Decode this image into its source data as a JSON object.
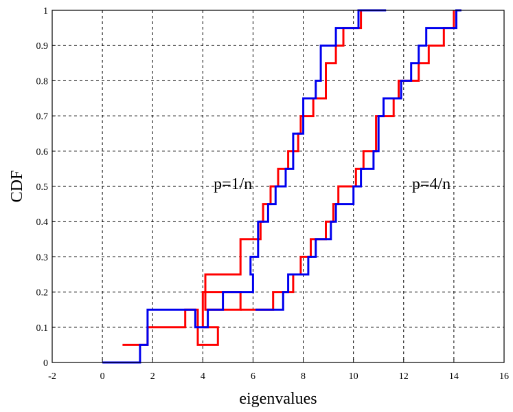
{
  "chart_data": {
    "type": "line",
    "step": true,
    "xlabel": "eigenvalues",
    "ylabel": "CDF",
    "xlim": [
      -2,
      16
    ],
    "ylim": [
      0,
      1
    ],
    "xticks": [
      "-2",
      "0",
      "2",
      "4",
      "6",
      "8",
      "10",
      "12",
      "14",
      "16"
    ],
    "yticks": [
      "0",
      "0.1",
      "0.2",
      "0.3",
      "0.4",
      "0.5",
      "0.6",
      "0.7",
      "0.8",
      "0.9",
      "1"
    ],
    "grid": true,
    "annotations": [
      {
        "text": "p=1/n",
        "x": 5.2,
        "y": 0.5
      },
      {
        "text": "p=4/n",
        "x": 13.1,
        "y": 0.5
      }
    ],
    "colors": {
      "red": "#ff0000",
      "blue": "#0000ee"
    },
    "series": [
      {
        "color": "red",
        "group": "p=1/n",
        "x": [
          0.8,
          1.8,
          3.3,
          3.8,
          4.6,
          4.0,
          5.5,
          4.1,
          5.5,
          6.3,
          6.4,
          6.7,
          7.0,
          7.4,
          7.8,
          7.9,
          8.4,
          8.9,
          9.3,
          9.6,
          10.3,
          10.6
        ],
        "y": [
          0.05,
          0.1,
          0.15,
          0.05,
          0.1,
          0.2,
          0.15,
          0.25,
          0.35,
          0.4,
          0.45,
          0.5,
          0.55,
          0.6,
          0.65,
          0.7,
          0.75,
          0.85,
          0.9,
          0.95,
          1.0,
          1.0
        ]
      },
      {
        "color": "blue",
        "group": "p=1/n",
        "x": [
          0.0,
          1.5,
          1.8,
          3.7,
          4.2,
          4.8,
          6.0,
          5.9,
          6.2,
          6.6,
          6.9,
          7.3,
          7.6,
          8.0,
          8.5,
          8.7,
          9.3,
          10.2,
          11.3
        ],
        "y": [
          0.0,
          0.05,
          0.15,
          0.1,
          0.15,
          0.2,
          0.25,
          0.3,
          0.4,
          0.45,
          0.5,
          0.55,
          0.65,
          0.75,
          0.8,
          0.9,
          0.95,
          1.0,
          1.0
        ]
      },
      {
        "color": "red",
        "group": "p=4/n",
        "x": [
          5.5,
          6.8,
          7.6,
          7.9,
          8.3,
          8.9,
          9.2,
          9.4,
          10.1,
          10.4,
          10.9,
          11.6,
          11.8,
          12.6,
          13.0,
          13.6,
          14.0
        ],
        "y": [
          0.15,
          0.2,
          0.25,
          0.3,
          0.35,
          0.4,
          0.45,
          0.5,
          0.55,
          0.6,
          0.7,
          0.75,
          0.8,
          0.85,
          0.9,
          0.95,
          1.0
        ]
      },
      {
        "color": "blue",
        "group": "p=4/n",
        "x": [
          6.1,
          7.2,
          7.4,
          8.2,
          8.5,
          9.1,
          9.3,
          10.0,
          10.3,
          10.8,
          11.0,
          11.2,
          11.9,
          12.3,
          12.6,
          12.9,
          14.1,
          14.3
        ],
        "y": [
          0.15,
          0.2,
          0.25,
          0.3,
          0.35,
          0.4,
          0.45,
          0.5,
          0.55,
          0.6,
          0.7,
          0.75,
          0.8,
          0.85,
          0.9,
          0.95,
          1.0,
          1.0
        ]
      }
    ]
  }
}
